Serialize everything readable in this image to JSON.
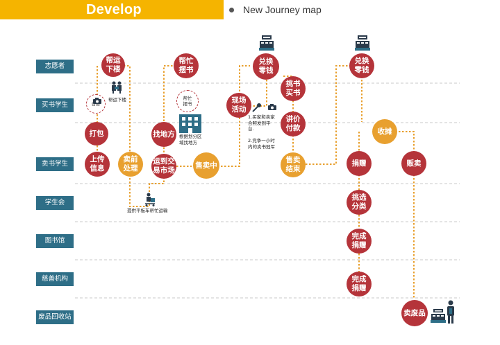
{
  "header": {
    "title": "Develop",
    "subtitle": "New Journey map"
  },
  "colors": {
    "header": "#f5b400",
    "role_box": "#2e6e87",
    "node_red": "#b5343a",
    "node_orange": "#e8a02f",
    "path": "#e8a02f",
    "divider": "#c8c8c8"
  },
  "roles": [
    "志愿者",
    "买书学生",
    "卖书学生",
    "学生会",
    "图书馆",
    "慈善机构",
    "废品回收站"
  ],
  "nodes": [
    {
      "id": "n1",
      "label": "帮运\n下楼",
      "color": "red"
    },
    {
      "id": "n2",
      "label": "打包",
      "color": "red"
    },
    {
      "id": "n3",
      "label": "上传\n信息",
      "color": "red"
    },
    {
      "id": "n4",
      "label": "卖前\n处理",
      "color": "orange"
    },
    {
      "id": "n5",
      "label": "帮忙\n摆书",
      "color": "red"
    },
    {
      "id": "n6",
      "label": "找地方",
      "color": "red"
    },
    {
      "id": "n7",
      "label": "运到交\n易市场",
      "color": "red"
    },
    {
      "id": "n8",
      "label": "售卖中",
      "color": "orange"
    },
    {
      "id": "n9",
      "label": "兑换\n零钱",
      "color": "red"
    },
    {
      "id": "n10",
      "label": "现场\n活动",
      "color": "red"
    },
    {
      "id": "n11",
      "label": "挑书\n买书",
      "color": "red"
    },
    {
      "id": "n12",
      "label": "讲价\n付款",
      "color": "red"
    },
    {
      "id": "n13",
      "label": "售卖\n结束",
      "color": "orange"
    },
    {
      "id": "n14",
      "label": "兑换\n零钱",
      "color": "red"
    },
    {
      "id": "n15",
      "label": "收摊",
      "color": "orange"
    },
    {
      "id": "n16",
      "label": "捐赠",
      "color": "red"
    },
    {
      "id": "n17",
      "label": "贩卖",
      "color": "red"
    },
    {
      "id": "n18",
      "label": "挑选\n分类",
      "color": "red"
    },
    {
      "id": "n19",
      "label": "完成\n捐赠",
      "color": "red"
    },
    {
      "id": "n20",
      "label": "完成\n捐赠",
      "color": "red"
    },
    {
      "id": "n21",
      "label": "卖废品",
      "color": "red"
    }
  ],
  "dashed_nodes": [
    {
      "id": "d1",
      "label": "合影"
    },
    {
      "id": "d2",
      "label": "帮忙\n摆书"
    }
  ],
  "notes": {
    "carry_down": "帮运下楼",
    "trolley": "提供平板车帮忙运输",
    "map_area": "根据划分区\n域找地方",
    "activity": "1.买家和卖家\n合照发到平\n台.\n\n2.竞争一小时\n内的卖书冠军"
  },
  "icons": [
    "register-icon",
    "register-icon",
    "register-icon",
    "helpers-icon",
    "camera-icon",
    "camera-icon",
    "microphone-icon",
    "building-icon",
    "trolley-icon",
    "person-icon"
  ]
}
